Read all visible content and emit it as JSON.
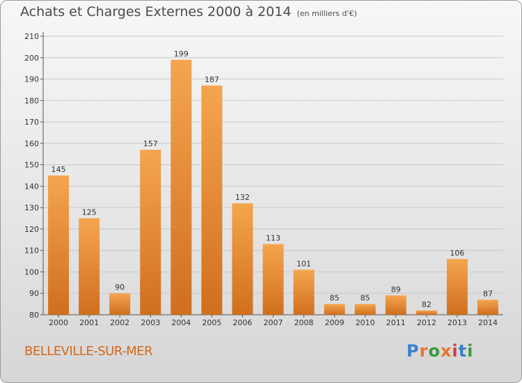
{
  "header": {
    "title": "Achats et Charges Externes 2000 à 2014",
    "unit": "(en milliers d'€)"
  },
  "footer": {
    "commune": "BELLEVILLE-SUR-MER",
    "logo_text": "Proxiti",
    "logo_colors": [
      "#3a7fd0",
      "#e8742a",
      "#3a9a3a",
      "#e8742a",
      "#d43a3a",
      "#3a7fd0",
      "#3a9a3a"
    ]
  },
  "colors": {
    "bar_light": "#f5a54e",
    "bar_dark": "#d06f1e",
    "grid": "#c8c8c8",
    "text": "#333333"
  },
  "chart_data": {
    "type": "bar",
    "title": "Achats et Charges Externes 2000 à 2014",
    "subtitle": "(en milliers d'€)",
    "categories": [
      "2000",
      "2001",
      "2002",
      "2003",
      "2004",
      "2005",
      "2006",
      "2007",
      "2008",
      "2009",
      "2010",
      "2011",
      "2012",
      "2013",
      "2014"
    ],
    "values": [
      145,
      125,
      90,
      157,
      199,
      187,
      132,
      113,
      101,
      85,
      85,
      89,
      82,
      106,
      87
    ],
    "ylim": [
      80,
      210
    ],
    "yticks": [
      80,
      90,
      100,
      110,
      120,
      130,
      140,
      150,
      160,
      170,
      180,
      190,
      200,
      210
    ],
    "grid": true,
    "data_labels": true
  }
}
